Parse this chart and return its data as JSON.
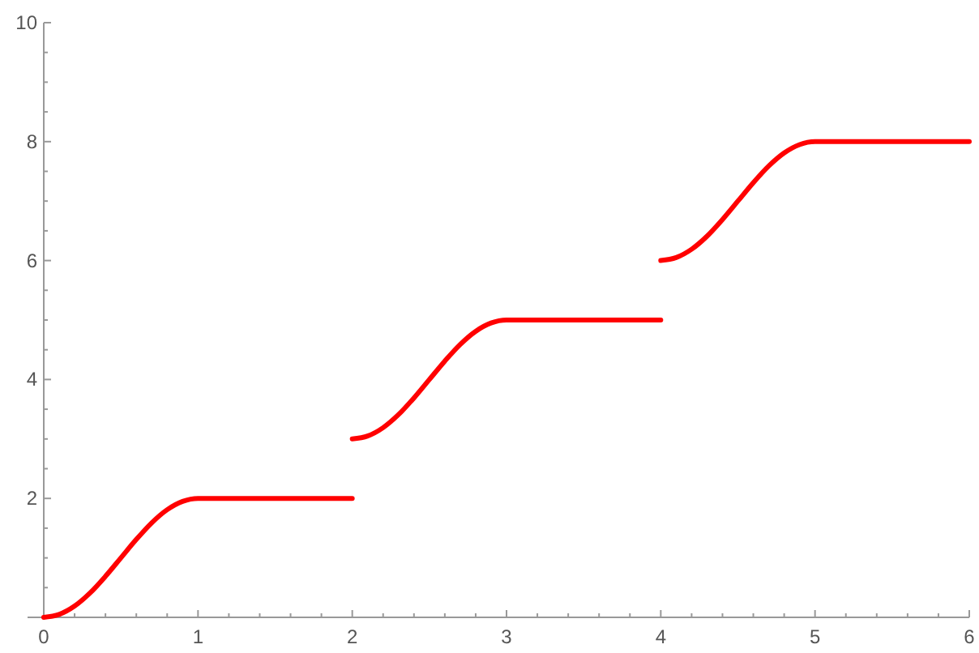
{
  "chart_data": {
    "type": "line",
    "xlim": [
      0,
      6
    ],
    "ylim": [
      0,
      10
    ],
    "xticks": [
      0,
      {
        "value": 0.2,
        "label": null
      },
      {
        "value": 0.4,
        "label": null
      },
      {
        "value": 0.6,
        "label": null
      },
      {
        "value": 0.8,
        "label": null
      },
      1,
      {
        "value": 1.2,
        "label": null
      },
      {
        "value": 1.4,
        "label": null
      },
      {
        "value": 1.6,
        "label": null
      },
      {
        "value": 1.8,
        "label": null
      },
      2,
      {
        "value": 2.2,
        "label": null
      },
      {
        "value": 2.4,
        "label": null
      },
      {
        "value": 2.6,
        "label": null
      },
      {
        "value": 2.8,
        "label": null
      },
      3,
      {
        "value": 3.2,
        "label": null
      },
      {
        "value": 3.4,
        "label": null
      },
      {
        "value": 3.6,
        "label": null
      },
      {
        "value": 3.8,
        "label": null
      },
      4,
      {
        "value": 4.2,
        "label": null
      },
      {
        "value": 4.4,
        "label": null
      },
      {
        "value": 4.6,
        "label": null
      },
      {
        "value": 4.8,
        "label": null
      },
      5,
      {
        "value": 5.2,
        "label": null
      },
      {
        "value": 5.4,
        "label": null
      },
      {
        "value": 5.6,
        "label": null
      },
      {
        "value": 5.8,
        "label": null
      },
      6
    ],
    "yticks": [
      {
        "value": 0.5,
        "label": null
      },
      {
        "value": 1,
        "label": null
      },
      {
        "value": 1.5,
        "label": null
      },
      2,
      {
        "value": 2.5,
        "label": null
      },
      {
        "value": 3,
        "label": null
      },
      {
        "value": 3.5,
        "label": null
      },
      4,
      {
        "value": 4.5,
        "label": null
      },
      {
        "value": 5,
        "label": null
      },
      {
        "value": 5.5,
        "label": null
      },
      6,
      {
        "value": 6.5,
        "label": null
      },
      {
        "value": 7,
        "label": null
      },
      {
        "value": 7.5,
        "label": null
      },
      8,
      {
        "value": 8.5,
        "label": null
      },
      {
        "value": 9,
        "label": null
      },
      {
        "value": 9.5,
        "label": null
      },
      10
    ],
    "grid": false,
    "marker": "none",
    "line_style": "solid",
    "series": [
      {
        "color": "#ff0000",
        "x": [
          0,
          0.1,
          0.2,
          0.3,
          0.4,
          0.5,
          0.6,
          0.7,
          0.8,
          0.9,
          1,
          2
        ],
        "values": [
          0,
          0.05,
          0.19,
          0.41,
          0.69,
          1,
          1.31,
          1.59,
          1.81,
          1.95,
          2,
          2
        ]
      },
      {
        "color": "#ff0000",
        "x": [
          2,
          2.1,
          2.2,
          2.3,
          2.4,
          2.5,
          2.6,
          2.7,
          2.8,
          2.9,
          3,
          4
        ],
        "values": [
          3,
          3.05,
          3.19,
          3.41,
          3.69,
          4,
          4.31,
          4.59,
          4.81,
          4.95,
          5,
          5
        ]
      },
      {
        "color": "#ff0000",
        "x": [
          4,
          4.1,
          4.2,
          4.3,
          4.4,
          4.5,
          4.6,
          4.7,
          4.8,
          4.9,
          5,
          6
        ],
        "values": [
          6,
          6.05,
          6.19,
          6.41,
          6.69,
          7,
          7.31,
          7.59,
          7.81,
          7.95,
          8,
          8
        ]
      }
    ]
  }
}
